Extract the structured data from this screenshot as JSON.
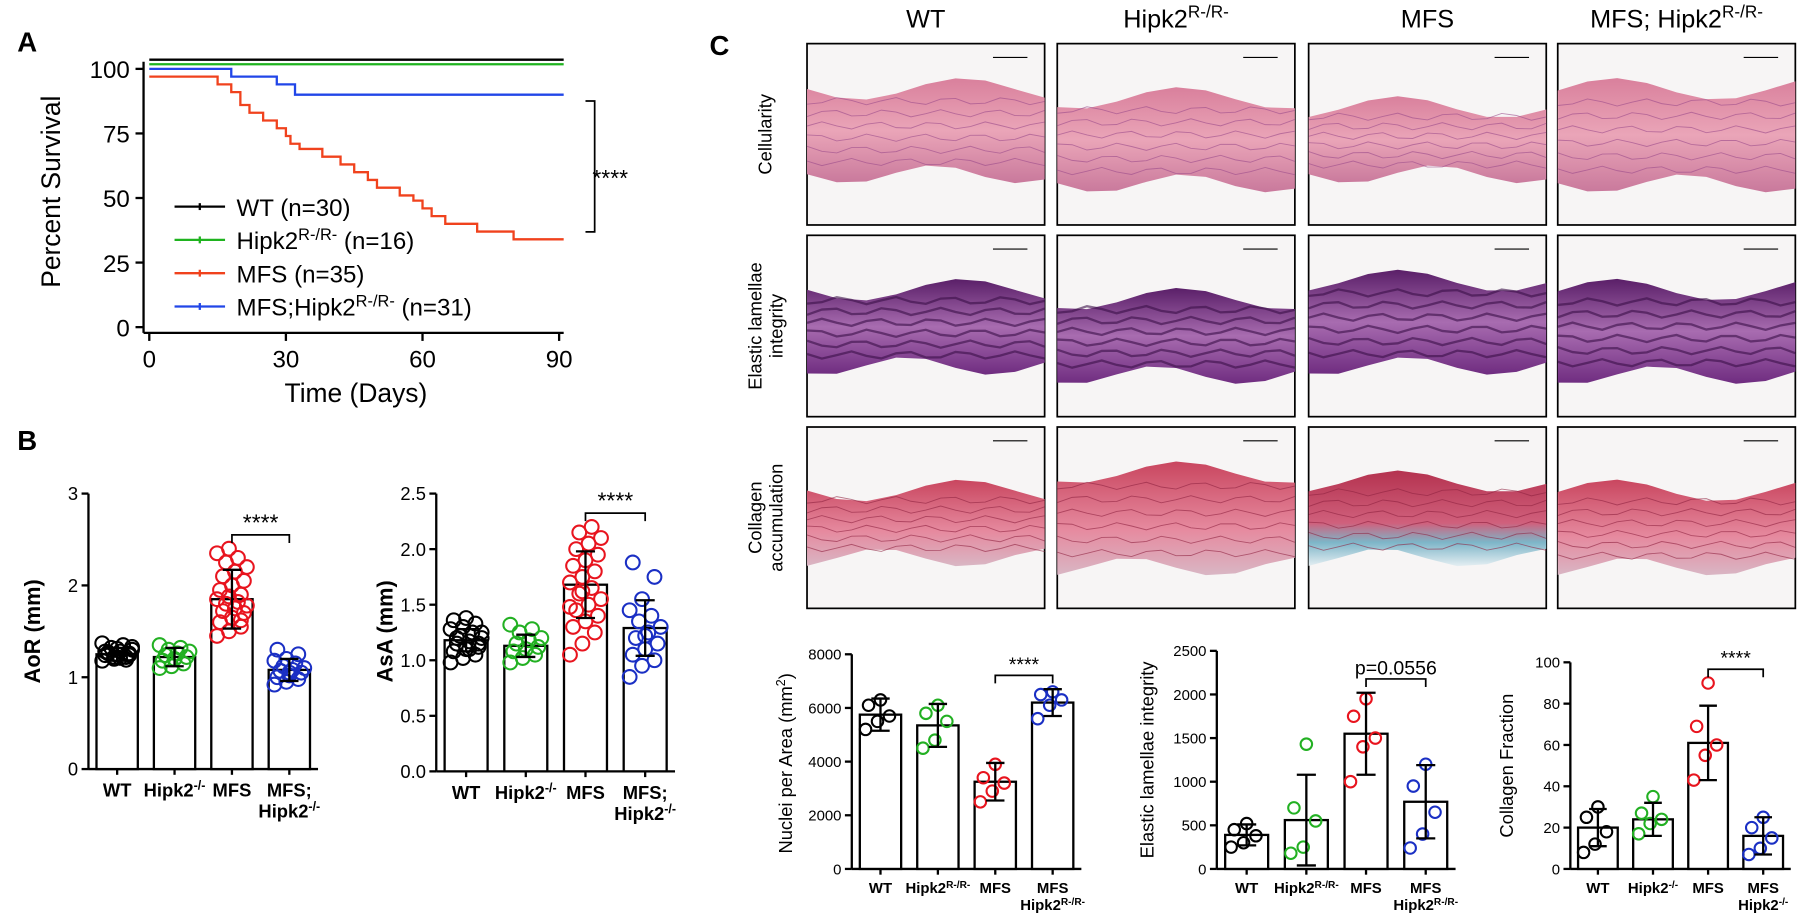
{
  "chart_data": [
    {
      "type": "line",
      "step": true,
      "panel": "A",
      "xlabel": "Time (Days)",
      "ylabel": "Percent Survival",
      "xlim": [
        0,
        91
      ],
      "ylim": [
        0,
        105
      ],
      "xticks": [
        0,
        30,
        60,
        90
      ],
      "yticks": [
        0,
        25,
        50,
        75,
        100
      ],
      "annotation": "****",
      "series": [
        {
          "name": "WT (n=30)",
          "color": "#000000",
          "x": [
            0,
            91
          ],
          "values": [
            100,
            100
          ]
        },
        {
          "name": "Hipk2R-/R- (n=16)",
          "color": "#1fb31f",
          "x": [
            0,
            91
          ],
          "values": [
            100,
            100
          ]
        },
        {
          "name": "MFS (n=35)",
          "color": "#f0421d",
          "x": [
            0,
            15,
            18,
            20,
            22,
            25,
            28,
            30,
            31,
            33,
            38,
            42,
            45,
            48,
            50,
            55,
            58,
            60,
            62,
            65,
            68,
            72,
            75,
            80,
            91
          ],
          "values": [
            97,
            94,
            91,
            86,
            83,
            80,
            77,
            74,
            71,
            69,
            66,
            63,
            60,
            57,
            54,
            51,
            49,
            46,
            43,
            40,
            40,
            37,
            37,
            34,
            34
          ]
        },
        {
          "name": "MFS;Hipk2R-/R- (n=31)",
          "color": "#2146e8",
          "x": [
            0,
            18,
            28,
            32,
            91
          ],
          "values": [
            100,
            97,
            94,
            90,
            90
          ]
        }
      ]
    },
    {
      "type": "bar",
      "panel": "B",
      "ylabel": "AoR (mm)",
      "ylim": [
        0,
        3
      ],
      "yticks": [
        0,
        1,
        2,
        3
      ],
      "annotation": "****",
      "categories": [
        "WT",
        "Hipk2-/-",
        "MFS",
        "MFS;\nHipk2-/-"
      ],
      "point_colors": [
        "#000000",
        "#22b022",
        "#e8141e",
        "#1a2fc4"
      ],
      "values": [
        1.25,
        1.22,
        1.85,
        1.08
      ],
      "errors": [
        0.07,
        0.1,
        0.32,
        0.12
      ],
      "points": [
        [
          1.18,
          1.2,
          1.22,
          1.24,
          1.25,
          1.26,
          1.27,
          1.28,
          1.3,
          1.32,
          1.35,
          1.37,
          1.22,
          1.19,
          1.28,
          1.31,
          1.24,
          1.26,
          1.21,
          1.33
        ],
        [
          1.1,
          1.12,
          1.15,
          1.18,
          1.2,
          1.22,
          1.24,
          1.26,
          1.28,
          1.3,
          1.32,
          1.35
        ],
        [
          1.45,
          1.5,
          1.55,
          1.6,
          1.65,
          1.7,
          1.72,
          1.75,
          1.78,
          1.8,
          1.82,
          1.85,
          1.88,
          1.9,
          1.95,
          2.0,
          2.05,
          2.1,
          2.15,
          2.2,
          2.25,
          2.3,
          2.35,
          2.4,
          1.62
        ],
        [
          0.92,
          0.95,
          0.98,
          1.0,
          1.02,
          1.05,
          1.07,
          1.08,
          1.1,
          1.12,
          1.15,
          1.18,
          1.2,
          1.25,
          1.3,
          1.05
        ]
      ]
    },
    {
      "type": "bar",
      "ylabel": "AsA (mm)",
      "ylim": [
        0,
        2.5
      ],
      "yticks": [
        {
          "value": 0,
          "label": "0.0"
        },
        0.5,
        {
          "value": 1,
          "label": "1.0"
        },
        1.5,
        {
          "value": 2,
          "label": "2.0"
        },
        2.5
      ],
      "annotation": "****",
      "categories": [
        "WT",
        "Hipk2-/-",
        "MFS",
        "MFS;\nHipk2-/-"
      ],
      "point_colors": [
        "#000000",
        "#22b022",
        "#e8141e",
        "#1a2fc4"
      ],
      "values": [
        1.18,
        1.13,
        1.68,
        1.29
      ],
      "errors": [
        0.1,
        0.1,
        0.3,
        0.25
      ],
      "points": [
        [
          0.98,
          1.02,
          1.05,
          1.08,
          1.1,
          1.12,
          1.15,
          1.17,
          1.2,
          1.22,
          1.25,
          1.28,
          1.3,
          1.33,
          1.36,
          1.38,
          1.15,
          1.2,
          1.1,
          1.25
        ],
        [
          0.98,
          1.02,
          1.05,
          1.08,
          1.1,
          1.12,
          1.15,
          1.18,
          1.2,
          1.25,
          1.28,
          1.32
        ],
        [
          1.05,
          1.15,
          1.25,
          1.3,
          1.35,
          1.4,
          1.45,
          1.5,
          1.55,
          1.6,
          1.65,
          1.7,
          1.75,
          1.8,
          1.85,
          1.9,
          1.95,
          2.0,
          2.05,
          2.1,
          2.15,
          2.2,
          1.48,
          1.62
        ],
        [
          0.85,
          0.95,
          1.0,
          1.05,
          1.1,
          1.15,
          1.2,
          1.25,
          1.3,
          1.35,
          1.4,
          1.45,
          1.55,
          1.75,
          1.88,
          1.22
        ]
      ]
    },
    {
      "type": "bar",
      "ylabel": "Nuclei per Area (mm2)",
      "ylim": [
        0,
        8000
      ],
      "yticks": [
        0,
        2000,
        4000,
        6000,
        8000
      ],
      "annotation": "****",
      "categories": [
        "WT",
        "Hipk2R-/R-",
        "MFS",
        "MFS\nHipk2R-/R-"
      ],
      "point_colors": [
        "#000000",
        "#22b022",
        "#e8141e",
        "#1a2fc4"
      ],
      "values": [
        5750,
        5350,
        3250,
        6200
      ],
      "errors": [
        600,
        800,
        700,
        500
      ],
      "points": [
        [
          5200,
          5500,
          5700,
          6100,
          6300
        ],
        [
          4500,
          4800,
          5500,
          5800,
          6100
        ],
        [
          2500,
          2900,
          3200,
          3400,
          3900
        ],
        [
          5600,
          6100,
          6300,
          6500,
          6600
        ]
      ]
    },
    {
      "type": "bar",
      "ylabel": "Elastic lamellae integrity",
      "ylim": [
        0,
        2500
      ],
      "yticks": [
        0,
        500,
        1000,
        1500,
        2000,
        2500
      ],
      "annotation": "p=0.0556",
      "categories": [
        "WT",
        "Hipk2R-/R-",
        "MFS",
        "MFS\nHipk2R-/R-"
      ],
      "point_colors": [
        "#000000",
        "#22b022",
        "#e8141e",
        "#1a2fc4"
      ],
      "values": [
        390,
        560,
        1550,
        770
      ],
      "errors": [
        120,
        520,
        470,
        420
      ],
      "points": [
        [
          250,
          300,
          380,
          450,
          520
        ],
        [
          180,
          250,
          550,
          700,
          1430
        ],
        [
          1000,
          1400,
          1500,
          1750,
          1950
        ],
        [
          240,
          400,
          650,
          950,
          1200
        ]
      ]
    },
    {
      "type": "bar",
      "ylabel": "Collagen Fraction",
      "ylim": [
        0,
        100
      ],
      "yticks": [
        0,
        20,
        40,
        60,
        80,
        100
      ],
      "annotation": "****",
      "categories": [
        "WT",
        "Hipk2-/-",
        "MFS",
        "MFS\nHipk2-/-"
      ],
      "point_colors": [
        "#000000",
        "#22b022",
        "#e8141e",
        "#1a2fc4"
      ],
      "values": [
        20,
        24,
        61,
        16
      ],
      "errors": [
        9,
        8,
        18,
        9
      ],
      "points": [
        [
          8,
          12,
          18,
          25,
          30
        ],
        [
          17,
          22,
          24,
          27,
          35
        ],
        [
          43,
          55,
          60,
          69,
          90
        ],
        [
          7,
          10,
          15,
          20,
          25
        ]
      ]
    }
  ],
  "histology": {
    "panel": "C",
    "columns": [
      "WT",
      "Hipk2R-/R-",
      "MFS",
      "MFS; Hipk2R-/R-"
    ],
    "rows": [
      "Cellularity",
      "Elastic lamellae\nintegrity",
      "Collagen\naccumulation"
    ]
  }
}
